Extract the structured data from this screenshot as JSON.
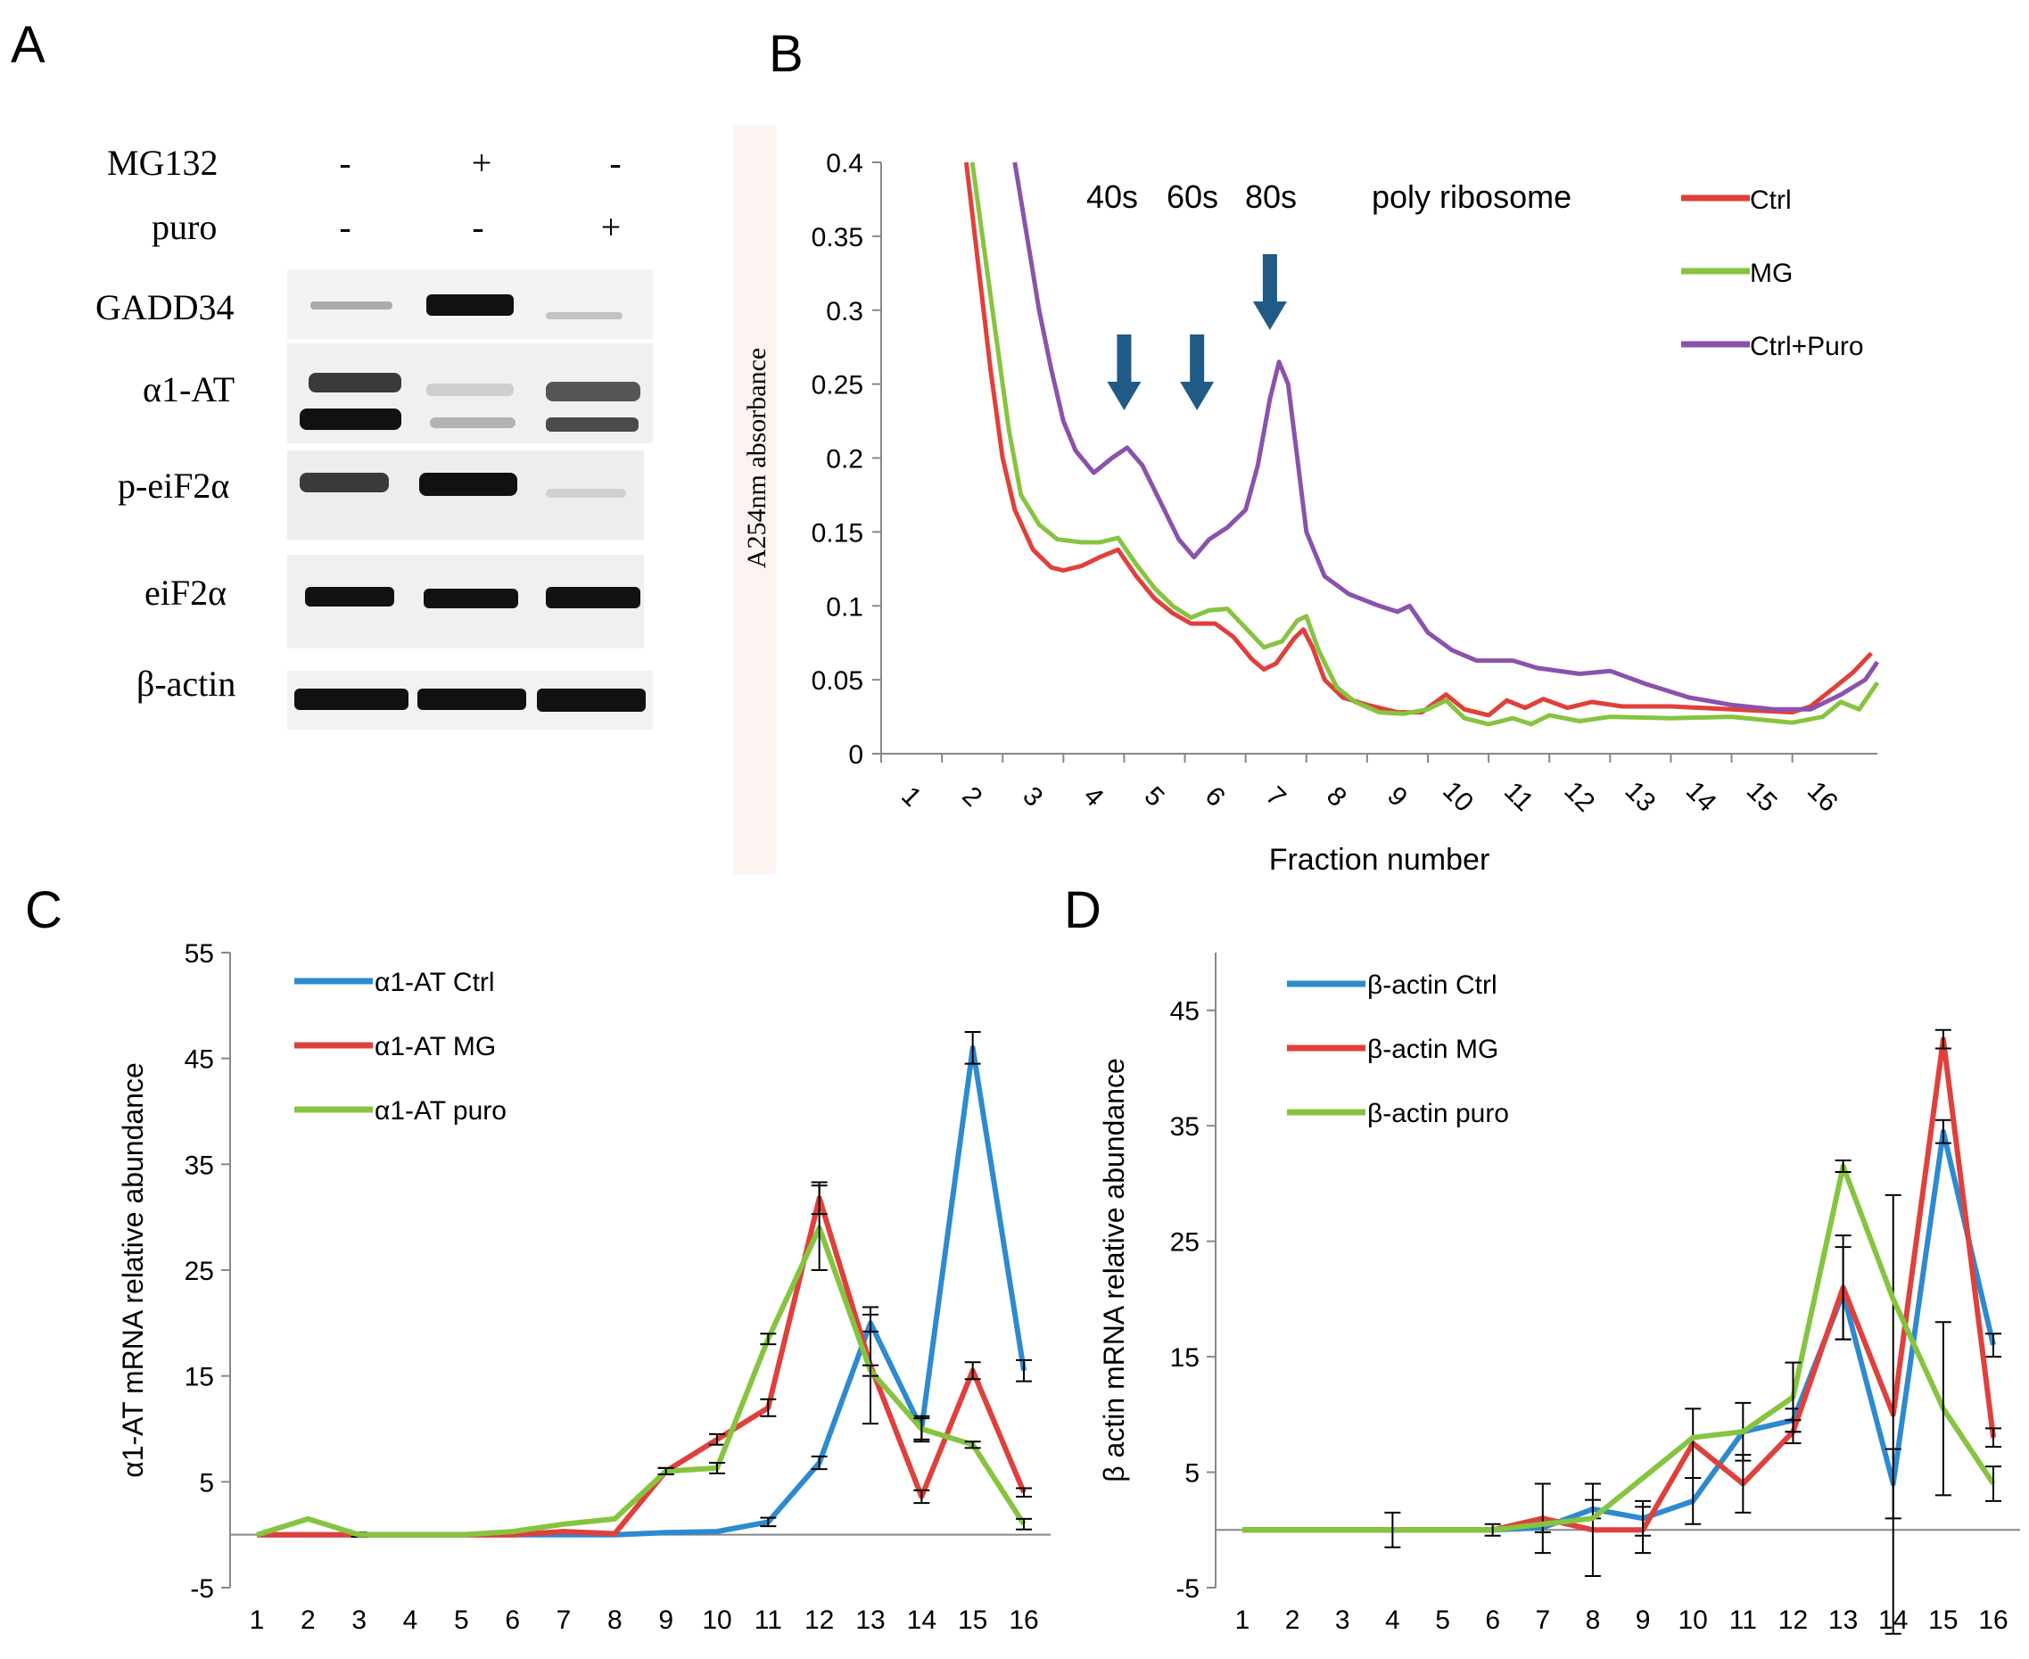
{
  "panels": {
    "A": "A",
    "B": "B",
    "C": "C",
    "D": "D"
  },
  "colors": {
    "red": "#e0403b",
    "green": "#86c440",
    "purple": "#8a52ad",
    "blue": "#2d8ad0",
    "arrow": "#1f5b86"
  },
  "western": {
    "treatments": [
      {
        "label": "MG132",
        "values": [
          "-",
          "+",
          "-"
        ]
      },
      {
        "label": "puro",
        "values": [
          "-",
          "-",
          "+"
        ]
      }
    ],
    "blots": [
      {
        "label": "GADD34",
        "lanes": [
          0.15,
          1.0,
          0.1
        ]
      },
      {
        "label": "α1-AT",
        "lanes": [
          0.9,
          0.2,
          0.7
        ]
      },
      {
        "label": "p-eiF2α",
        "lanes": [
          0.85,
          1.0,
          0.1
        ]
      },
      {
        "label": "eiF2α",
        "lanes": [
          1.0,
          1.0,
          1.0
        ]
      },
      {
        "label": "β-actin",
        "lanes": [
          1.0,
          1.0,
          1.0
        ]
      }
    ]
  },
  "chart_data": [
    {
      "id": "B",
      "type": "line",
      "title": "",
      "xlabel": "Fraction number",
      "ylabel": "A254nm absorbance",
      "xlim": [
        0,
        16.4
      ],
      "ylim": [
        0,
        0.4
      ],
      "yticks": [
        "0",
        "0.05",
        "0.1",
        "0.15",
        "0.2",
        "0.25",
        "0.3",
        "0.35",
        "0.4"
      ],
      "xticks": [
        "1",
        "2",
        "3",
        "4",
        "5",
        "6",
        "7",
        "8",
        "9",
        "10",
        "11",
        "12",
        "13",
        "14",
        "15",
        "16"
      ],
      "annotations": [
        "40s",
        "60s",
        "80s",
        "poly ribosome"
      ],
      "arrows_at_x": [
        4.0,
        5.2,
        6.4
      ],
      "series": [
        {
          "name": "Ctrl",
          "color": "#e0403b",
          "points": [
            [
              1.4,
              0.4
            ],
            [
              1.6,
              0.33
            ],
            [
              1.8,
              0.26
            ],
            [
              2.0,
              0.2
            ],
            [
              2.2,
              0.165
            ],
            [
              2.5,
              0.138
            ],
            [
              2.8,
              0.126
            ],
            [
              3.0,
              0.124
            ],
            [
              3.3,
              0.127
            ],
            [
              3.6,
              0.133
            ],
            [
              3.9,
              0.138
            ],
            [
              4.2,
              0.12
            ],
            [
              4.5,
              0.105
            ],
            [
              4.8,
              0.095
            ],
            [
              5.1,
              0.088
            ],
            [
              5.5,
              0.088
            ],
            [
              5.8,
              0.079
            ],
            [
              6.1,
              0.064
            ],
            [
              6.3,
              0.057
            ],
            [
              6.5,
              0.061
            ],
            [
              6.8,
              0.078
            ],
            [
              6.95,
              0.084
            ],
            [
              7.1,
              0.072
            ],
            [
              7.3,
              0.05
            ],
            [
              7.6,
              0.038
            ],
            [
              8.0,
              0.033
            ],
            [
              8.5,
              0.028
            ],
            [
              8.9,
              0.028
            ],
            [
              9.3,
              0.04
            ],
            [
              9.6,
              0.03
            ],
            [
              10.0,
              0.026
            ],
            [
              10.3,
              0.036
            ],
            [
              10.6,
              0.031
            ],
            [
              10.9,
              0.037
            ],
            [
              11.3,
              0.031
            ],
            [
              11.7,
              0.035
            ],
            [
              12.2,
              0.032
            ],
            [
              13.0,
              0.032
            ],
            [
              14.0,
              0.03
            ],
            [
              15.0,
              0.028
            ],
            [
              15.3,
              0.032
            ],
            [
              15.7,
              0.045
            ],
            [
              16.0,
              0.055
            ],
            [
              16.3,
              0.068
            ]
          ]
        },
        {
          "name": "MG",
          "color": "#86c440",
          "points": [
            [
              1.5,
              0.4
            ],
            [
              1.7,
              0.34
            ],
            [
              1.9,
              0.28
            ],
            [
              2.1,
              0.22
            ],
            [
              2.3,
              0.175
            ],
            [
              2.6,
              0.155
            ],
            [
              2.9,
              0.145
            ],
            [
              3.3,
              0.143
            ],
            [
              3.6,
              0.143
            ],
            [
              3.9,
              0.146
            ],
            [
              4.2,
              0.128
            ],
            [
              4.5,
              0.112
            ],
            [
              4.8,
              0.1
            ],
            [
              5.1,
              0.092
            ],
            [
              5.4,
              0.097
            ],
            [
              5.7,
              0.098
            ],
            [
              6.0,
              0.085
            ],
            [
              6.3,
              0.072
            ],
            [
              6.6,
              0.076
            ],
            [
              6.85,
              0.09
            ],
            [
              7.0,
              0.093
            ],
            [
              7.2,
              0.07
            ],
            [
              7.5,
              0.045
            ],
            [
              7.8,
              0.035
            ],
            [
              8.2,
              0.028
            ],
            [
              8.6,
              0.027
            ],
            [
              9.0,
              0.03
            ],
            [
              9.3,
              0.036
            ],
            [
              9.6,
              0.024
            ],
            [
              10.0,
              0.02
            ],
            [
              10.4,
              0.024
            ],
            [
              10.7,
              0.02
            ],
            [
              11.0,
              0.026
            ],
            [
              11.5,
              0.022
            ],
            [
              12.0,
              0.025
            ],
            [
              13.0,
              0.024
            ],
            [
              14.0,
              0.025
            ],
            [
              15.0,
              0.021
            ],
            [
              15.5,
              0.025
            ],
            [
              15.8,
              0.035
            ],
            [
              16.1,
              0.03
            ],
            [
              16.4,
              0.048
            ]
          ]
        },
        {
          "name": "Ctrl+Puro",
          "color": "#8a52ad",
          "points": [
            [
              2.2,
              0.4
            ],
            [
              2.4,
              0.35
            ],
            [
              2.6,
              0.3
            ],
            [
              2.8,
              0.26
            ],
            [
              3.0,
              0.225
            ],
            [
              3.2,
              0.205
            ],
            [
              3.5,
              0.19
            ],
            [
              3.8,
              0.2
            ],
            [
              4.05,
              0.207
            ],
            [
              4.3,
              0.195
            ],
            [
              4.6,
              0.17
            ],
            [
              4.9,
              0.145
            ],
            [
              5.15,
              0.133
            ],
            [
              5.4,
              0.145
            ],
            [
              5.7,
              0.153
            ],
            [
              6.0,
              0.165
            ],
            [
              6.2,
              0.195
            ],
            [
              6.4,
              0.24
            ],
            [
              6.55,
              0.265
            ],
            [
              6.7,
              0.25
            ],
            [
              6.85,
              0.2
            ],
            [
              7.0,
              0.15
            ],
            [
              7.3,
              0.12
            ],
            [
              7.7,
              0.108
            ],
            [
              8.2,
              0.1
            ],
            [
              8.5,
              0.096
            ],
            [
              8.7,
              0.1
            ],
            [
              9.0,
              0.082
            ],
            [
              9.4,
              0.07
            ],
            [
              9.8,
              0.063
            ],
            [
              10.4,
              0.063
            ],
            [
              10.8,
              0.058
            ],
            [
              11.5,
              0.054
            ],
            [
              12.0,
              0.056
            ],
            [
              12.6,
              0.047
            ],
            [
              13.3,
              0.038
            ],
            [
              14.0,
              0.033
            ],
            [
              14.7,
              0.03
            ],
            [
              15.3,
              0.03
            ],
            [
              15.8,
              0.04
            ],
            [
              16.2,
              0.05
            ],
            [
              16.4,
              0.062
            ]
          ]
        }
      ]
    },
    {
      "id": "C",
      "type": "line",
      "title": "",
      "xlabel": "Fraction number",
      "ylabel": "α1-AT mRNA  relative  abundance",
      "ylim": [
        -5,
        55
      ],
      "yticks": [
        "-5",
        "5",
        "15",
        "25",
        "35",
        "45",
        "55"
      ],
      "categories": [
        "1",
        "2",
        "3",
        "4",
        "5",
        "6",
        "7",
        "8",
        "9",
        "10",
        "11",
        "12",
        "13",
        "14",
        "15",
        "16"
      ],
      "series": [
        {
          "name": "α1-AT Ctrl",
          "color": "#2d8ad0",
          "values": [
            0,
            0,
            0,
            0,
            0,
            0,
            0,
            0,
            0.2,
            0.3,
            1.2,
            6.8,
            20,
            10,
            46,
            15.5
          ],
          "errors": [
            0,
            0,
            0,
            0,
            0,
            0,
            0,
            0,
            0,
            0,
            0.4,
            0.6,
            0.8,
            1.2,
            1.5,
            1
          ]
        },
        {
          "name": "α1-AT MG",
          "color": "#e0403b",
          "values": [
            0,
            0,
            0,
            0,
            0,
            0,
            0.3,
            0.1,
            6,
            9,
            12,
            31.8,
            16,
            3.6,
            15.5,
            4
          ],
          "errors": [
            0,
            0,
            0.2,
            0,
            0,
            0,
            0,
            0,
            0.3,
            0.5,
            0.8,
            1.5,
            5.5,
            0.6,
            0.8,
            0.4
          ]
        },
        {
          "name": "α1-AT puro",
          "color": "#86c440",
          "values": [
            0,
            1.5,
            0,
            0,
            0,
            0.3,
            1,
            1.5,
            6,
            6.3,
            18.5,
            29,
            15.5,
            10,
            8.5,
            1
          ],
          "errors": [
            0,
            0,
            0,
            0,
            0,
            0,
            0,
            0,
            0.3,
            0.5,
            0.5,
            4,
            0.5,
            1,
            0.3,
            0.5
          ]
        }
      ]
    },
    {
      "id": "D",
      "type": "line",
      "title": "",
      "xlabel": "Fraction number",
      "ylabel": "β actin mRNA relative abundance",
      "ylim": [
        -5,
        50
      ],
      "yticks": [
        "-5",
        "5",
        "15",
        "25",
        "35",
        "45"
      ],
      "categories": [
        "1",
        "2",
        "3",
        "4",
        "5",
        "6",
        "7",
        "8",
        "9",
        "10",
        "11",
        "12",
        "13",
        "14",
        "15",
        "16"
      ],
      "series": [
        {
          "name": "β-actin Ctrl",
          "color": "#2d8ad0",
          "values": [
            0,
            0,
            0,
            0,
            0,
            0,
            0.2,
            1.8,
            1,
            2.5,
            8.5,
            9.5,
            20.5,
            4,
            34.5,
            16
          ],
          "errors": [
            0,
            0,
            0,
            0,
            0,
            0,
            0.4,
            0.8,
            1.5,
            2,
            2.5,
            1,
            4,
            3,
            1,
            1
          ]
        },
        {
          "name": "β-actin MG",
          "color": "#e0403b",
          "values": [
            0,
            0,
            0,
            0,
            0,
            0,
            1,
            0,
            0,
            7.5,
            4,
            8.5,
            21,
            10,
            42.5,
            8
          ],
          "errors": [
            0,
            0,
            0,
            0,
            0,
            0,
            3,
            4,
            2,
            3,
            2.5,
            1,
            4.5,
            19,
            0.8,
            0.8
          ]
        },
        {
          "name": "β-actin puro",
          "color": "#86c440",
          "values": [
            0,
            0,
            0,
            0,
            0,
            0,
            0.5,
            1,
            4.5,
            8,
            8.5,
            11.5,
            31.5,
            20,
            10.5,
            4
          ],
          "errors": [
            0,
            0,
            0,
            1.5,
            0,
            0.5,
            0,
            0,
            0,
            0,
            0,
            3,
            0.5,
            0,
            7.5,
            1.5
          ]
        }
      ]
    }
  ]
}
